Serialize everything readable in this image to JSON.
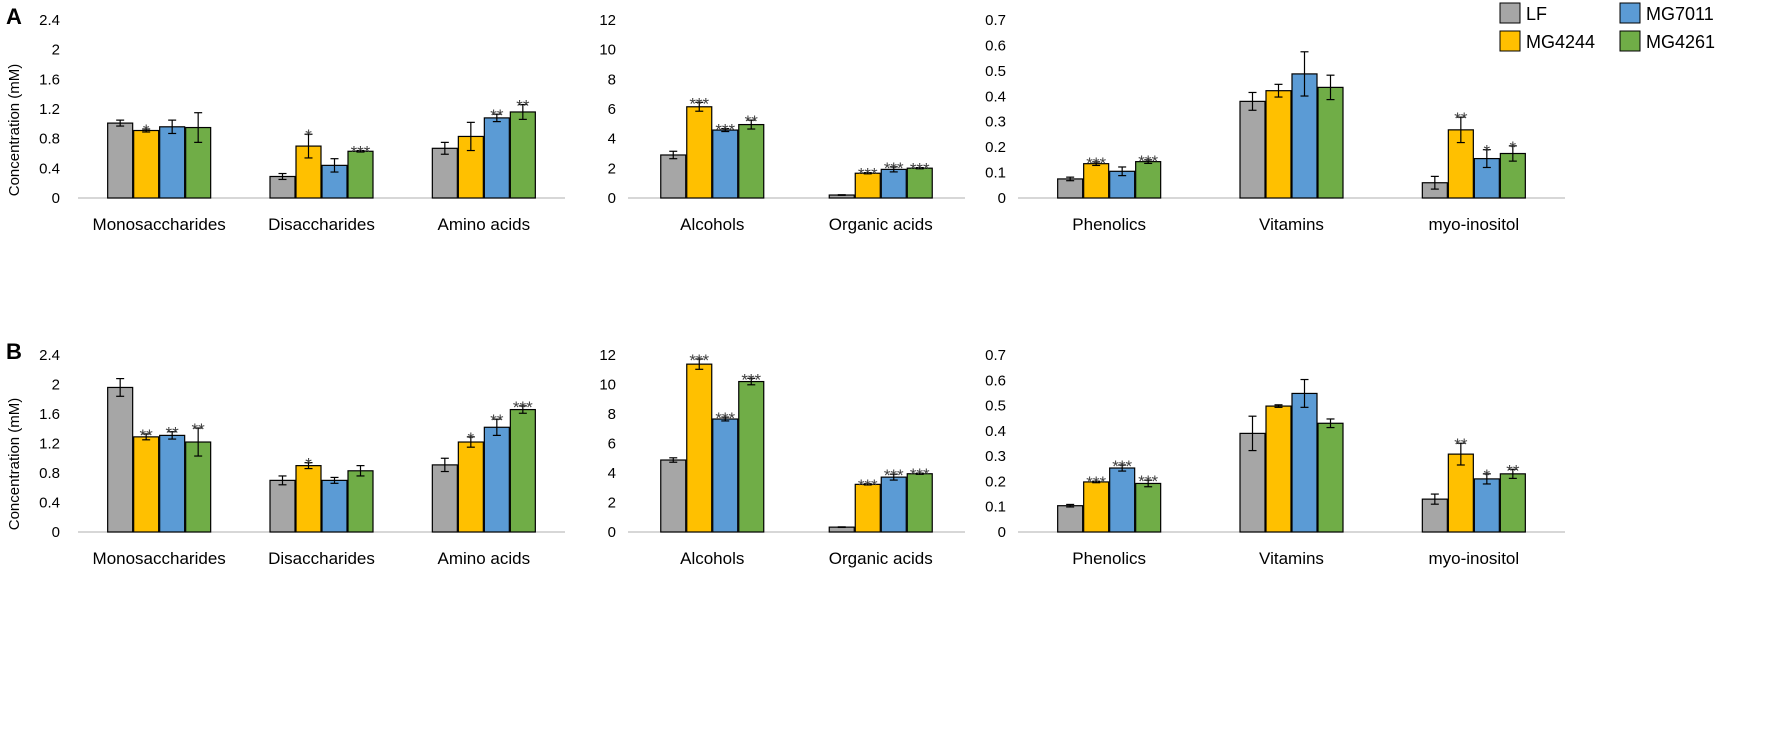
{
  "figure": {
    "panel_labels": [
      "A",
      "B"
    ],
    "ylabel": "Concentration (mM)",
    "legend": [
      {
        "name": "LF",
        "color": "#a6a6a6"
      },
      {
        "name": "MG4244",
        "color": "#ffc000"
      },
      {
        "name": "MG7011",
        "color": "#5b9bd5"
      },
      {
        "name": "MG4261",
        "color": "#70ad47"
      }
    ]
  },
  "chart_data": [
    {
      "type": "bar",
      "panel": "A",
      "position": "left",
      "ylabel": "Concentration (mM)",
      "ylim": [
        0,
        2.4
      ],
      "ticks": [
        "0",
        "0.4",
        "0.8",
        "1.2",
        "1.6",
        "2",
        "2.4"
      ],
      "categories": [
        "Monosaccharides",
        "Disaccharides",
        "Amino acids"
      ],
      "series": [
        {
          "name": "LF",
          "color": "#a6a6a6",
          "values": [
            1.01,
            0.29,
            0.67
          ],
          "errors": [
            0.04,
            0.04,
            0.08
          ],
          "sig": [
            "",
            "",
            ""
          ]
        },
        {
          "name": "MG4244",
          "color": "#ffc000",
          "values": [
            0.91,
            0.7,
            0.83
          ],
          "errors": [
            0.02,
            0.16,
            0.19
          ],
          "sig": [
            "*",
            "*",
            ""
          ]
        },
        {
          "name": "MG7011",
          "color": "#5b9bd5",
          "values": [
            0.96,
            0.44,
            1.08
          ],
          "errors": [
            0.09,
            0.09,
            0.05
          ],
          "sig": [
            "",
            "",
            "**"
          ]
        },
        {
          "name": "MG4261",
          "color": "#70ad47",
          "values": [
            0.95,
            0.63,
            1.16
          ],
          "errors": [
            0.2,
            0.01,
            0.1
          ],
          "sig": [
            "",
            "***",
            "**"
          ]
        }
      ]
    },
    {
      "type": "bar",
      "panel": "A",
      "position": "middle",
      "ylim": [
        0,
        12
      ],
      "ticks": [
        "0",
        "2",
        "4",
        "6",
        "8",
        "10",
        "12"
      ],
      "categories": [
        "Alcohols",
        "Organic acids"
      ],
      "series": [
        {
          "name": "LF",
          "color": "#a6a6a6",
          "values": [
            2.9,
            0.2
          ],
          "errors": [
            0.25,
            0.02
          ],
          "sig": [
            "",
            ""
          ]
        },
        {
          "name": "MG4244",
          "color": "#ffc000",
          "values": [
            6.15,
            1.67
          ],
          "errors": [
            0.3,
            0.04
          ],
          "sig": [
            "***",
            "***"
          ]
        },
        {
          "name": "MG7011",
          "color": "#5b9bd5",
          "values": [
            4.58,
            1.93
          ],
          "errors": [
            0.1,
            0.17
          ],
          "sig": [
            "***",
            "***"
          ]
        },
        {
          "name": "MG4261",
          "color": "#70ad47",
          "values": [
            4.95,
            2.01
          ],
          "errors": [
            0.3,
            0.04
          ],
          "sig": [
            "**",
            "***"
          ]
        }
      ]
    },
    {
      "type": "bar",
      "panel": "A",
      "position": "right",
      "ylim": [
        0,
        0.7
      ],
      "ticks": [
        "0",
        "0.1",
        "0.2",
        "0.3",
        "0.4",
        "0.5",
        "0.6",
        "0.7"
      ],
      "categories": [
        "Phenolics",
        "Vitamins",
        "myo-inositol"
      ],
      "series": [
        {
          "name": "LF",
          "color": "#a6a6a6",
          "values": [
            0.075,
            0.38,
            0.06
          ],
          "errors": [
            0.007,
            0.035,
            0.025
          ],
          "sig": [
            "",
            "",
            ""
          ]
        },
        {
          "name": "MG4244",
          "color": "#ffc000",
          "values": [
            0.135,
            0.422,
            0.268
          ],
          "errors": [
            0.007,
            0.025,
            0.05
          ],
          "sig": [
            "***",
            "",
            "**"
          ]
        },
        {
          "name": "MG7011",
          "color": "#5b9bd5",
          "values": [
            0.105,
            0.488,
            0.155
          ],
          "errors": [
            0.017,
            0.087,
            0.035
          ],
          "sig": [
            "",
            "",
            "*"
          ]
        },
        {
          "name": "MG4261",
          "color": "#70ad47",
          "values": [
            0.143,
            0.435,
            0.175
          ],
          "errors": [
            0.007,
            0.048,
            0.03
          ],
          "sig": [
            "***",
            "",
            "*"
          ]
        }
      ]
    },
    {
      "type": "bar",
      "panel": "B",
      "position": "left",
      "ylabel": "Concentration (mM)",
      "ylim": [
        0,
        2.4
      ],
      "ticks": [
        "0",
        "0.4",
        "0.8",
        "1.2",
        "1.6",
        "2",
        "2.4"
      ],
      "categories": [
        "Monosaccharides",
        "Disaccharides",
        "Amino acids"
      ],
      "series": [
        {
          "name": "LF",
          "color": "#a6a6a6",
          "values": [
            1.96,
            0.7,
            0.91
          ],
          "errors": [
            0.12,
            0.06,
            0.09
          ],
          "sig": [
            "",
            "",
            ""
          ]
        },
        {
          "name": "MG4244",
          "color": "#ffc000",
          "values": [
            1.29,
            0.9,
            1.22
          ],
          "errors": [
            0.04,
            0.04,
            0.07
          ],
          "sig": [
            "**",
            "*",
            "*"
          ]
        },
        {
          "name": "MG7011",
          "color": "#5b9bd5",
          "values": [
            1.31,
            0.7,
            1.42
          ],
          "errors": [
            0.05,
            0.04,
            0.11
          ],
          "sig": [
            "**",
            "",
            "**"
          ]
        },
        {
          "name": "MG4261",
          "color": "#70ad47",
          "values": [
            1.22,
            0.83,
            1.66
          ],
          "errors": [
            0.19,
            0.07,
            0.05
          ],
          "sig": [
            "**",
            "",
            "***"
          ]
        }
      ]
    },
    {
      "type": "bar",
      "panel": "B",
      "position": "middle",
      "ylim": [
        0,
        12
      ],
      "ticks": [
        "0",
        "2",
        "4",
        "6",
        "8",
        "10",
        "12"
      ],
      "categories": [
        "Alcohols",
        "Organic acids"
      ],
      "series": [
        {
          "name": "LF",
          "color": "#a6a6a6",
          "values": [
            4.88,
            0.33
          ],
          "errors": [
            0.15,
            0.02
          ],
          "sig": [
            "",
            ""
          ]
        },
        {
          "name": "MG4244",
          "color": "#ffc000",
          "values": [
            11.38,
            3.23
          ],
          "errors": [
            0.35,
            0.04
          ],
          "sig": [
            "***",
            "***"
          ]
        },
        {
          "name": "MG7011",
          "color": "#5b9bd5",
          "values": [
            7.66,
            3.72
          ],
          "errors": [
            0.13,
            0.2
          ],
          "sig": [
            "***",
            "***"
          ]
        },
        {
          "name": "MG4261",
          "color": "#70ad47",
          "values": [
            10.2,
            3.95
          ],
          "errors": [
            0.22,
            0.04
          ],
          "sig": [
            "***",
            "***"
          ]
        }
      ]
    },
    {
      "type": "bar",
      "panel": "B",
      "position": "right",
      "ylim": [
        0,
        0.7
      ],
      "ticks": [
        "0",
        "0.1",
        "0.2",
        "0.3",
        "0.4",
        "0.5",
        "0.6",
        "0.7"
      ],
      "categories": [
        "Phenolics",
        "Vitamins",
        "myo-inositol"
      ],
      "series": [
        {
          "name": "LF",
          "color": "#a6a6a6",
          "values": [
            0.104,
            0.39,
            0.13
          ],
          "errors": [
            0.005,
            0.068,
            0.02
          ],
          "sig": [
            "",
            "",
            ""
          ]
        },
        {
          "name": "MG4244",
          "color": "#ffc000",
          "values": [
            0.198,
            0.498,
            0.308
          ],
          "errors": [
            0.003,
            0.005,
            0.043
          ],
          "sig": [
            "***",
            "",
            "**"
          ]
        },
        {
          "name": "MG7011",
          "color": "#5b9bd5",
          "values": [
            0.253,
            0.548,
            0.21
          ],
          "errors": [
            0.012,
            0.055,
            0.02
          ],
          "sig": [
            "***",
            "",
            "*"
          ]
        },
        {
          "name": "MG4261",
          "color": "#70ad47",
          "values": [
            0.192,
            0.43,
            0.23
          ],
          "errors": [
            0.013,
            0.017,
            0.018
          ],
          "sig": [
            "***",
            "",
            "**"
          ]
        }
      ]
    }
  ]
}
